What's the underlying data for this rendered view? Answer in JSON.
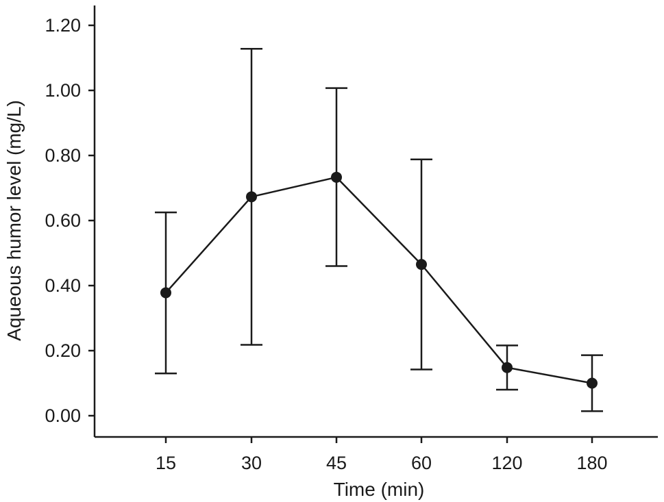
{
  "chart_data": {
    "type": "line",
    "title": "",
    "xlabel": "Time (min)",
    "ylabel": "Aqueous humor level (mg/L)",
    "categories": [
      "15",
      "30",
      "45",
      "60",
      "120",
      "180"
    ],
    "ylim": [
      0,
      1.2
    ],
    "yticks": [
      "0.00",
      "0.20",
      "0.40",
      "0.60",
      "0.80",
      "1.00",
      "1.20"
    ],
    "grid": false,
    "legend": "none",
    "series": [
      {
        "values": [
          0.378,
          0.673,
          0.733,
          0.465,
          0.148,
          0.1
        ],
        "error_low": [
          0.13,
          0.218,
          0.46,
          0.142,
          0.08,
          0.014
        ],
        "error_high": [
          0.625,
          1.128,
          1.007,
          0.788,
          0.216,
          0.186
        ],
        "color": "#1a1a1a"
      }
    ]
  }
}
